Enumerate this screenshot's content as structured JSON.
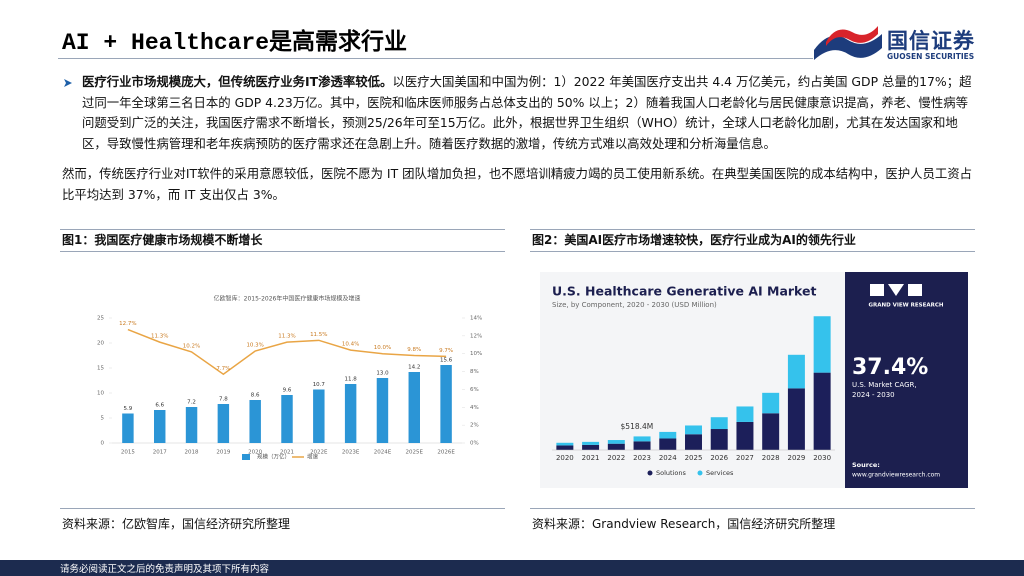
{
  "header": {
    "title": "AI + Healthcare是高需求行业",
    "logo_cn": "国信证券",
    "logo_en": "GUOSEN SECURITIES"
  },
  "body": {
    "paragraphs": [
      {
        "bold": "医疗行业市场规模庞大，但传统医疗业务IT渗透率较低。",
        "text": "以医疗大国美国和中国为例：1）2022 年美国医疗支出共 4.4 万亿美元，约占美国 GDP 总量的17%；超过同一年全球第三名日本的 GDP 4.23万亿。其中，医院和临床医师服务占总体支出的 50% 以上；2）随着我国人口老龄化与居民健康意识提高，养老、慢性病等问题受到广泛的关注，我国医疗需求不断增长，预测25/26年可至15万亿。此外，根据世界卫生组织（WHO）统计，全球人口老龄化加剧，尤其在发达国家和地区，导致慢性病管理和老年疾病预防的医疗需求还在急剧上升。随着医疗数据的激增，传统方式难以高效处理和分析海量信息。"
      },
      {
        "text": "然而，传统医疗行业对IT软件的采用意愿较低，医院不愿为 IT 团队增加负担，也不愿培训精疲力竭的员工使用新系统。在典型美国医院的成本结构中，医护人员工资占比平均达到 37%，而 IT 支出仅占 3%。"
      }
    ]
  },
  "figures": [
    {
      "caption": "图1：我国医疗健康市场规模不断增长",
      "source": "资料来源：亿欧智库，国信经济研究所整理"
    },
    {
      "caption": "图2：美国AI医疗市场增速较快，医疗行业成为AI的领先行业",
      "source": "资料来源：Grandview Research，国信经济研究所整理"
    }
  ],
  "chart_data": [
    {
      "type": "bar-line",
      "title": "亿欧智库：2015-2026年中国医疗健康市场规模及增速",
      "categories": [
        "2015",
        "2017",
        "2018",
        "2019",
        "2020",
        "2021",
        "2022E",
        "2023E",
        "2024E",
        "2025E",
        "2026E"
      ],
      "series": [
        {
          "name": "规模（万亿）",
          "color": "#2b95d6",
          "values": [
            5.9,
            6.6,
            7.2,
            7.8,
            8.6,
            9.6,
            10.7,
            11.8,
            13.0,
            14.2,
            15.6
          ],
          "value_labels": [
            "5.9",
            "6.6",
            "7.2",
            "7.8",
            "8.6",
            "9.6",
            "10.7",
            "11.8",
            "13.0",
            "14.2",
            "15.6"
          ]
        },
        {
          "name": "增速",
          "color": "#e9a545",
          "axis": "y2",
          "values": [
            12.7,
            11.3,
            10.2,
            7.7,
            10.3,
            11.3,
            11.5,
            10.4,
            10.0,
            9.8,
            9.7
          ],
          "value_labels": [
            "12.7%",
            "11.3%",
            "10.2%",
            "7.7%",
            "10.3%",
            "11.3%",
            "11.5%",
            "10.4%",
            "10.0%",
            "9.8%",
            "9.7%"
          ]
        }
      ],
      "ylim": [
        0,
        25
      ],
      "yticks": [
        0,
        5,
        10,
        15,
        20,
        25
      ],
      "y2lim": [
        0,
        14
      ],
      "y2ticks": [
        {
          "value": 0,
          "label": "0%"
        },
        {
          "value": 2,
          "label": "2%"
        },
        {
          "value": 4,
          "label": "4%"
        },
        {
          "value": 6,
          "label": "6%"
        },
        {
          "value": 8,
          "label": "8%"
        },
        {
          "value": 10,
          "label": "10%"
        },
        {
          "value": 12,
          "label": "12%"
        },
        {
          "value": 14,
          "label": "14%"
        }
      ],
      "grid": false,
      "legend": "bottom"
    },
    {
      "type": "stacked-bar",
      "title": "U.S. Healthcare Generative AI Market",
      "subtitle": "Size, by Component, 2020 - 2030 (USD Million)",
      "categories": [
        "2020",
        "2021",
        "2022",
        "2023",
        "2024",
        "2025",
        "2026",
        "2027",
        "2028",
        "2029",
        "2030"
      ],
      "series": [
        {
          "name": "Solutions",
          "color": "#1c1f5a",
          "values": [
            175,
            195,
            240,
            330,
            440,
            600,
            800,
            1070,
            1400,
            2350,
            2950
          ]
        },
        {
          "name": "Services",
          "color": "#35c2ec",
          "values": [
            100,
            115,
            140,
            188,
            250,
            335,
            450,
            590,
            780,
            1280,
            2150
          ]
        }
      ],
      "ylim": [
        0,
        5300
      ],
      "annotation": "$518.4M",
      "brand": "GRAND VIEW RESEARCH",
      "cagr": "37.4%",
      "cagr_caption": [
        "U.S. Market CAGR,",
        "2024 - 2030"
      ],
      "source_label": "Source:",
      "source_url": "www.grandviewresearch.com",
      "legend": "bottom"
    }
  ],
  "footer": "请务必阅读正文之后的免责声明及其项下所有内容"
}
